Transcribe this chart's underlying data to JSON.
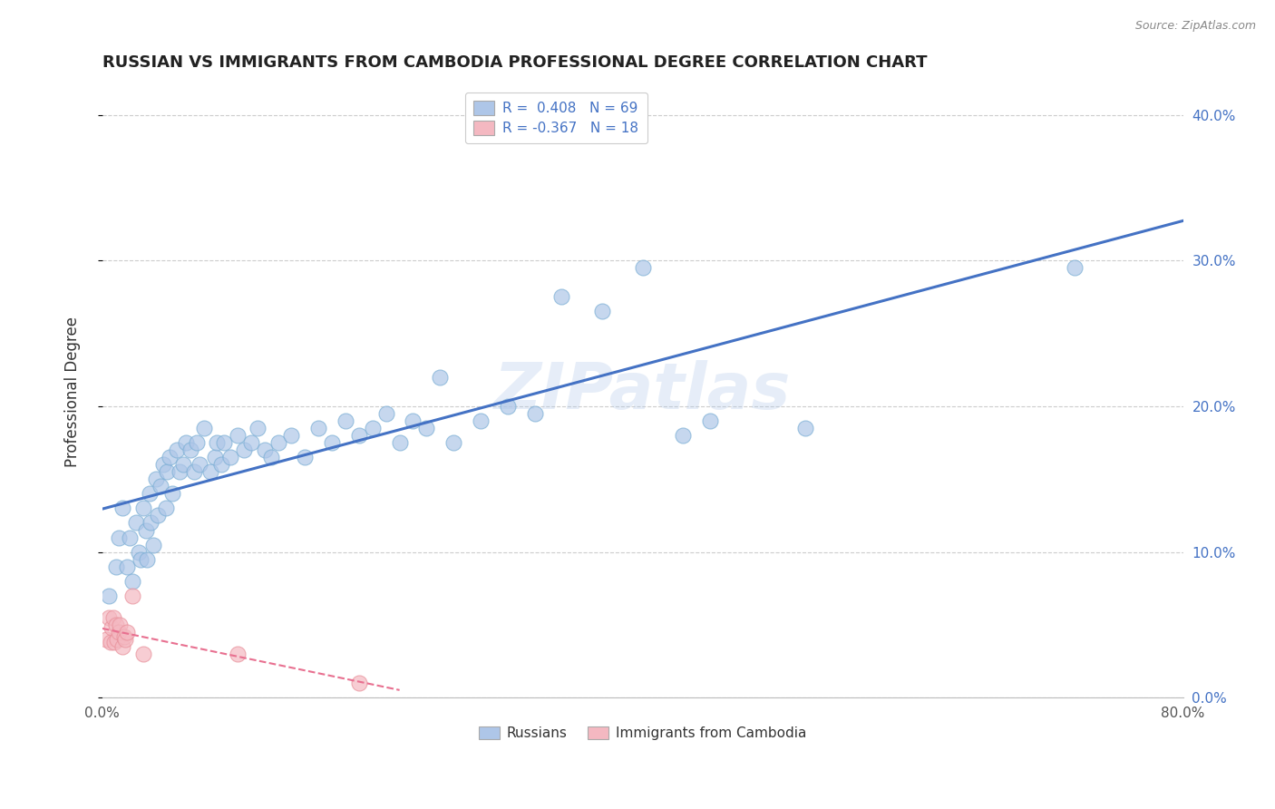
{
  "title": "RUSSIAN VS IMMIGRANTS FROM CAMBODIA PROFESSIONAL DEGREE CORRELATION CHART",
  "source": "Source: ZipAtlas.com",
  "ylabel": "Professional Degree",
  "xlim": [
    0,
    0.8
  ],
  "ylim": [
    0,
    0.42
  ],
  "background_color": "#ffffff",
  "grid_color": "#cccccc",
  "russian_color": "#aec6e8",
  "russian_edge_color": "#7aaed4",
  "cambodia_color": "#f4b8c1",
  "cambodia_edge_color": "#e8909a",
  "russian_line_color": "#4472c4",
  "cambodia_line_color": "#e87090",
  "watermark": "ZIPatlas",
  "russian_x": [
    0.005,
    0.01,
    0.012,
    0.015,
    0.018,
    0.02,
    0.022,
    0.025,
    0.027,
    0.028,
    0.03,
    0.032,
    0.033,
    0.035,
    0.036,
    0.038,
    0.04,
    0.041,
    0.043,
    0.045,
    0.047,
    0.048,
    0.05,
    0.052,
    0.055,
    0.057,
    0.06,
    0.062,
    0.065,
    0.068,
    0.07,
    0.072,
    0.075,
    0.08,
    0.083,
    0.085,
    0.088,
    0.09,
    0.095,
    0.1,
    0.105,
    0.11,
    0.115,
    0.12,
    0.125,
    0.13,
    0.14,
    0.15,
    0.16,
    0.17,
    0.18,
    0.19,
    0.2,
    0.21,
    0.22,
    0.23,
    0.24,
    0.25,
    0.26,
    0.28,
    0.3,
    0.32,
    0.34,
    0.37,
    0.4,
    0.43,
    0.45,
    0.52,
    0.72
  ],
  "russian_y": [
    0.07,
    0.09,
    0.11,
    0.13,
    0.09,
    0.11,
    0.08,
    0.12,
    0.1,
    0.095,
    0.13,
    0.115,
    0.095,
    0.14,
    0.12,
    0.105,
    0.15,
    0.125,
    0.145,
    0.16,
    0.13,
    0.155,
    0.165,
    0.14,
    0.17,
    0.155,
    0.16,
    0.175,
    0.17,
    0.155,
    0.175,
    0.16,
    0.185,
    0.155,
    0.165,
    0.175,
    0.16,
    0.175,
    0.165,
    0.18,
    0.17,
    0.175,
    0.185,
    0.17,
    0.165,
    0.175,
    0.18,
    0.165,
    0.185,
    0.175,
    0.19,
    0.18,
    0.185,
    0.195,
    0.175,
    0.19,
    0.185,
    0.22,
    0.175,
    0.19,
    0.2,
    0.195,
    0.275,
    0.265,
    0.295,
    0.18,
    0.19,
    0.185,
    0.295
  ],
  "cambodia_x": [
    0.003,
    0.005,
    0.006,
    0.007,
    0.008,
    0.009,
    0.01,
    0.011,
    0.012,
    0.013,
    0.015,
    0.016,
    0.017,
    0.018,
    0.022,
    0.03,
    0.1,
    0.19
  ],
  "cambodia_y": [
    0.04,
    0.055,
    0.038,
    0.048,
    0.055,
    0.038,
    0.05,
    0.04,
    0.045,
    0.05,
    0.035,
    0.042,
    0.04,
    0.045,
    0.07,
    0.03,
    0.03,
    0.01
  ]
}
